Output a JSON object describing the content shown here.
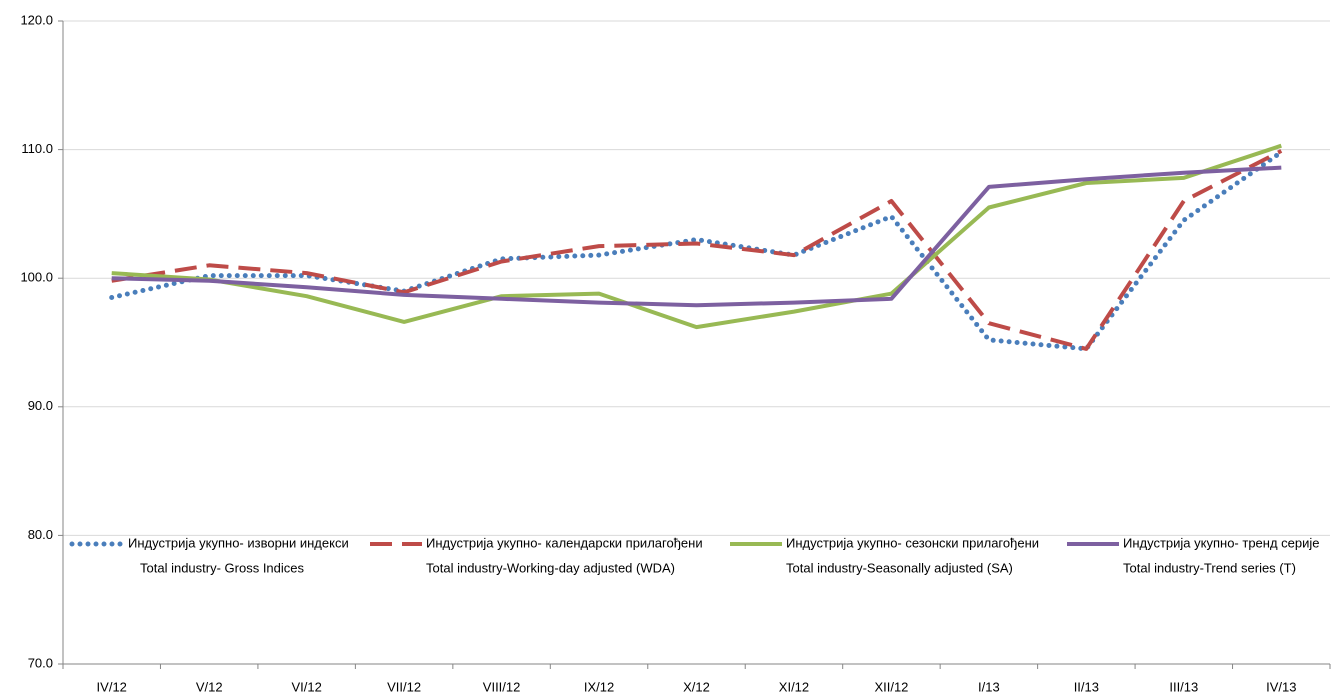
{
  "chart_data": {
    "type": "line",
    "categories": [
      "IV/12",
      "V/12",
      "VI/12",
      "VII/12",
      "VIII/12",
      "IX/12",
      "X/12",
      "XI/12",
      "XII/12",
      "I/13",
      "II/13",
      "III/13",
      "IV/13"
    ],
    "series": [
      {
        "name": "Индустрија укупно- изворни индекси",
        "name_en": "Total industry- Gross Indices",
        "color": "#4a7ebb",
        "style": "dotted",
        "values": [
          98.5,
          100.2,
          100.2,
          99.0,
          101.5,
          101.8,
          103.0,
          101.8,
          104.8,
          95.2,
          94.5,
          104.5,
          109.8
        ]
      },
      {
        "name": "Индустрија укупно- календарски прилагођени",
        "name_en": "Total industry-Working-day adjusted (WDA)",
        "color": "#be4b48",
        "style": "dashed",
        "values": [
          99.8,
          101.0,
          100.4,
          98.9,
          101.3,
          102.5,
          102.7,
          101.8,
          106.0,
          96.5,
          94.5,
          106.0,
          109.9
        ]
      },
      {
        "name": "Индустрија укупно- сезонски прилагођени",
        "name_en": "Total industry-Seasonally adjusted (SA)",
        "color": "#98b954",
        "style": "solid",
        "values": [
          100.4,
          99.9,
          98.6,
          96.6,
          98.6,
          98.8,
          96.2,
          97.4,
          98.8,
          105.5,
          107.4,
          107.8,
          110.3
        ]
      },
      {
        "name": "Индустрија укупно- тренд серије",
        "name_en": "Total industry-Trend series (T)",
        "color": "#7d60a0",
        "style": "solid",
        "values": [
          100.0,
          99.8,
          99.3,
          98.7,
          98.4,
          98.1,
          97.9,
          98.1,
          98.4,
          107.1,
          107.7,
          108.2,
          108.6
        ]
      }
    ],
    "ylim": [
      70,
      120
    ],
    "yticks": [
      {
        "value": 70,
        "label": "70.0"
      },
      {
        "value": 80,
        "label": "80.0"
      },
      {
        "value": 90,
        "label": "90.0"
      },
      {
        "value": 100,
        "label": "100.0"
      },
      {
        "value": 110,
        "label": "110.0"
      },
      {
        "value": 120,
        "label": "120.0"
      }
    ],
    "grid": true
  }
}
